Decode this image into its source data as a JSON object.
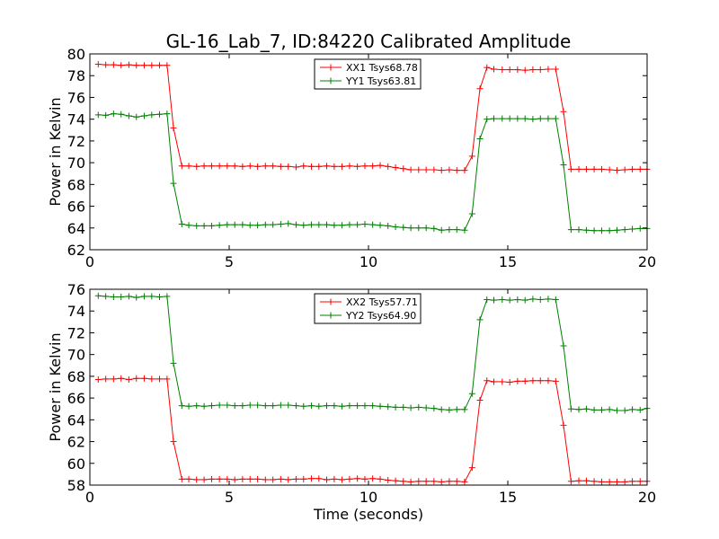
{
  "title": "GL-16_Lab_7, ID:84220 Calibrated Amplitude",
  "xlabel": "Time (seconds)",
  "chart_data": [
    {
      "type": "line",
      "ylabel": "Power in Kelvin",
      "xlabel": "",
      "xlim": [
        0,
        20
      ],
      "ylim": [
        62,
        80
      ],
      "xticks": [
        0,
        5,
        10,
        15,
        20
      ],
      "yticks": [
        62,
        64,
        66,
        68,
        70,
        72,
        74,
        76,
        78,
        80
      ],
      "grid": false,
      "legend": "top-center",
      "x": [
        0.3,
        0.57,
        0.85,
        1.12,
        1.4,
        1.67,
        1.95,
        2.22,
        2.5,
        2.77,
        3.0,
        3.3,
        3.55,
        3.83,
        4.1,
        4.37,
        4.65,
        4.93,
        5.2,
        5.48,
        5.75,
        6.02,
        6.3,
        6.57,
        6.85,
        7.12,
        7.4,
        7.67,
        7.95,
        8.22,
        8.5,
        8.77,
        9.05,
        9.32,
        9.6,
        9.87,
        10.15,
        10.42,
        10.7,
        10.97,
        11.25,
        11.52,
        11.8,
        12.07,
        12.35,
        12.62,
        12.9,
        13.17,
        13.45,
        13.72,
        14.0,
        14.25,
        14.5,
        14.8,
        15.07,
        15.35,
        15.62,
        15.9,
        16.17,
        16.45,
        16.72,
        17.0,
        17.27,
        17.55,
        17.82,
        18.1,
        18.37,
        18.65,
        18.92,
        19.2,
        19.47,
        19.75,
        20.0
      ],
      "series": [
        {
          "name": "XX1 Tsys68.78",
          "color": "#ff0000",
          "values": [
            79.05,
            79.0,
            79.0,
            78.95,
            79.0,
            78.95,
            78.95,
            78.95,
            78.95,
            78.95,
            73.2,
            69.7,
            69.7,
            69.65,
            69.7,
            69.7,
            69.7,
            69.7,
            69.7,
            69.65,
            69.7,
            69.65,
            69.7,
            69.7,
            69.65,
            69.65,
            69.6,
            69.7,
            69.65,
            69.65,
            69.7,
            69.65,
            69.65,
            69.7,
            69.65,
            69.7,
            69.7,
            69.75,
            69.65,
            69.55,
            69.45,
            69.35,
            69.35,
            69.35,
            69.35,
            69.3,
            69.35,
            69.3,
            69.3,
            70.6,
            76.8,
            78.75,
            78.6,
            78.55,
            78.55,
            78.55,
            78.5,
            78.55,
            78.55,
            78.6,
            78.6,
            74.7,
            69.4,
            69.4,
            69.4,
            69.4,
            69.4,
            69.35,
            69.3,
            69.35,
            69.4,
            69.4,
            69.4
          ]
        },
        {
          "name": "YY1 Tsys63.81",
          "color": "#008000",
          "values": [
            74.4,
            74.35,
            74.5,
            74.45,
            74.3,
            74.2,
            74.3,
            74.4,
            74.45,
            74.5,
            68.1,
            64.35,
            64.25,
            64.2,
            64.2,
            64.2,
            64.25,
            64.3,
            64.3,
            64.3,
            64.25,
            64.25,
            64.3,
            64.3,
            64.35,
            64.4,
            64.3,
            64.25,
            64.3,
            64.3,
            64.3,
            64.25,
            64.25,
            64.3,
            64.3,
            64.35,
            64.3,
            64.25,
            64.2,
            64.1,
            64.05,
            64.0,
            64.0,
            64.0,
            63.95,
            63.8,
            63.85,
            63.85,
            63.8,
            65.3,
            72.2,
            74.0,
            74.05,
            74.05,
            74.05,
            74.05,
            74.05,
            74.0,
            74.05,
            74.05,
            74.05,
            69.8,
            63.85,
            63.85,
            63.8,
            63.75,
            63.75,
            63.75,
            63.8,
            63.85,
            63.9,
            63.95,
            63.95
          ]
        }
      ]
    },
    {
      "type": "line",
      "ylabel": "Power in Kelvin",
      "xlabel": "Time (seconds)",
      "xlim": [
        0,
        20
      ],
      "ylim": [
        58,
        76
      ],
      "xticks": [
        0,
        5,
        10,
        15,
        20
      ],
      "yticks": [
        58,
        60,
        62,
        64,
        66,
        68,
        70,
        72,
        74,
        76
      ],
      "grid": false,
      "legend": "top-center",
      "x": [
        0.3,
        0.57,
        0.85,
        1.12,
        1.4,
        1.67,
        1.95,
        2.22,
        2.5,
        2.77,
        3.0,
        3.3,
        3.55,
        3.83,
        4.1,
        4.37,
        4.65,
        4.93,
        5.2,
        5.48,
        5.75,
        6.02,
        6.3,
        6.57,
        6.85,
        7.12,
        7.4,
        7.67,
        7.95,
        8.22,
        8.5,
        8.77,
        9.05,
        9.32,
        9.6,
        9.87,
        10.15,
        10.42,
        10.7,
        10.97,
        11.25,
        11.52,
        11.8,
        12.07,
        12.35,
        12.62,
        12.9,
        13.17,
        13.45,
        13.72,
        14.0,
        14.25,
        14.5,
        14.8,
        15.07,
        15.35,
        15.62,
        15.9,
        16.17,
        16.45,
        16.72,
        17.0,
        17.27,
        17.55,
        17.82,
        18.1,
        18.37,
        18.65,
        18.92,
        19.2,
        19.47,
        19.75,
        20.0
      ],
      "series": [
        {
          "name": "XX2 Tsys57.71",
          "color": "#ff0000",
          "values": [
            67.7,
            67.75,
            67.75,
            67.8,
            67.7,
            67.8,
            67.8,
            67.75,
            67.75,
            67.75,
            62.0,
            58.55,
            58.55,
            58.5,
            58.5,
            58.55,
            58.55,
            58.55,
            58.5,
            58.55,
            58.55,
            58.55,
            58.5,
            58.5,
            58.55,
            58.5,
            58.55,
            58.55,
            58.6,
            58.6,
            58.5,
            58.55,
            58.5,
            58.55,
            58.6,
            58.55,
            58.6,
            58.55,
            58.45,
            58.4,
            58.35,
            58.3,
            58.35,
            58.35,
            58.35,
            58.3,
            58.35,
            58.35,
            58.3,
            59.6,
            65.8,
            67.6,
            67.5,
            67.5,
            67.45,
            67.55,
            67.55,
            67.6,
            67.6,
            67.6,
            67.55,
            63.5,
            58.35,
            58.4,
            58.4,
            58.35,
            58.3,
            58.3,
            58.3,
            58.3,
            58.35,
            58.35,
            58.35
          ]
        },
        {
          "name": "YY2 Tsys64.90",
          "color": "#008000",
          "values": [
            75.4,
            75.35,
            75.3,
            75.3,
            75.35,
            75.25,
            75.35,
            75.35,
            75.3,
            75.35,
            69.2,
            65.3,
            65.25,
            65.3,
            65.25,
            65.3,
            65.35,
            65.35,
            65.3,
            65.3,
            65.35,
            65.35,
            65.3,
            65.3,
            65.35,
            65.35,
            65.3,
            65.25,
            65.3,
            65.25,
            65.3,
            65.3,
            65.25,
            65.3,
            65.3,
            65.3,
            65.3,
            65.25,
            65.2,
            65.15,
            65.15,
            65.1,
            65.15,
            65.1,
            65.05,
            64.95,
            64.9,
            64.95,
            64.95,
            66.4,
            73.2,
            75.05,
            75.0,
            75.05,
            75.0,
            75.05,
            75.0,
            75.1,
            75.05,
            75.1,
            75.05,
            70.8,
            65.0,
            64.95,
            65.0,
            64.9,
            64.9,
            64.95,
            64.85,
            64.85,
            64.95,
            64.9,
            65.05
          ]
        }
      ]
    }
  ]
}
